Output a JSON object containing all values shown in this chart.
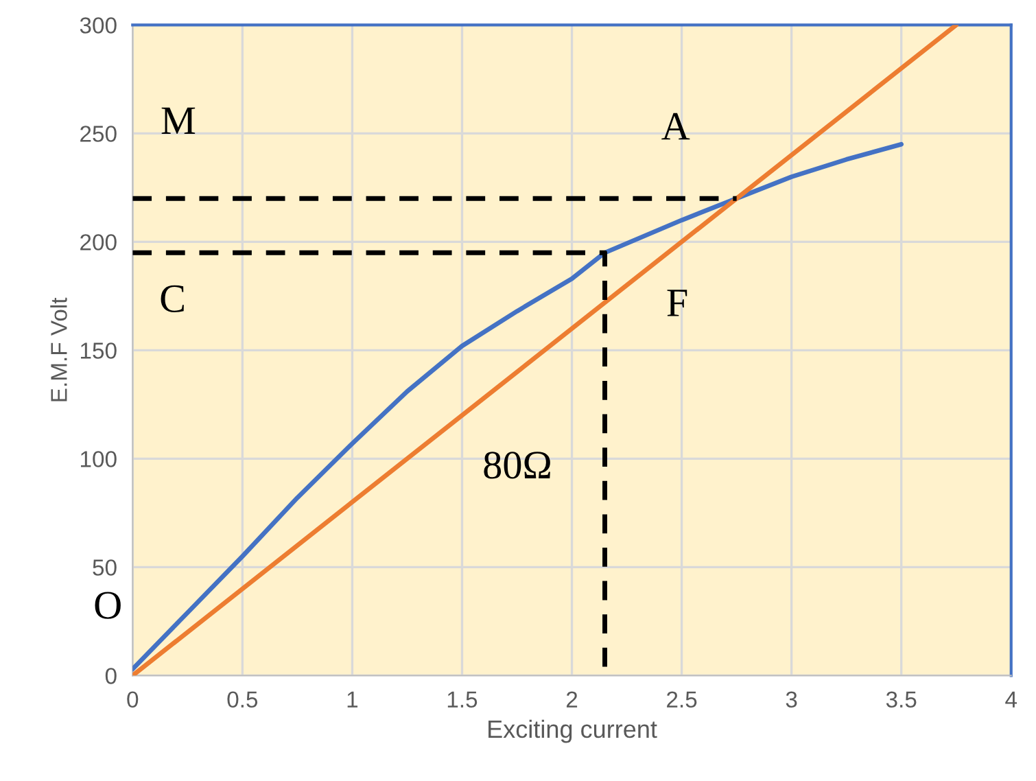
{
  "chart_data": {
    "type": "line",
    "xlabel": "Exciting current",
    "ylabel": "E.M.F Volt",
    "xlim": [
      0,
      4
    ],
    "ylim": [
      0,
      300
    ],
    "xticks": [
      0,
      0.5,
      1,
      1.5,
      2,
      2.5,
      3,
      3.5,
      4
    ],
    "yticks": [
      0,
      50,
      100,
      150,
      200,
      250,
      300
    ],
    "grid": true,
    "legend": false,
    "series": [
      {
        "color": "#4472c4",
        "x": [
          0,
          0.25,
          0.5,
          0.75,
          1,
          1.25,
          1.5,
          1.75,
          2,
          2.15,
          2.5,
          2.75,
          3,
          3.25,
          3.5
        ],
        "values": [
          3,
          29,
          55,
          82,
          107,
          131,
          152,
          168,
          183,
          195,
          210,
          220,
          230,
          238,
          245
        ]
      },
      {
        "color": "#ed7d31",
        "x": [
          0,
          3.75
        ],
        "values": [
          0,
          300
        ]
      },
      {
        "color": "#000000",
        "line_style": "dashed",
        "x": [
          0,
          2.75
        ],
        "values": [
          220,
          220
        ]
      },
      {
        "color": "#000000",
        "line_style": "dashed",
        "x": [
          0,
          2.15,
          2.15
        ],
        "values": [
          195,
          195,
          0
        ]
      }
    ],
    "annotations": [
      {
        "text": "M",
        "x": 0,
        "y": 220
      },
      {
        "text": "A",
        "x": 2.75,
        "y": 220
      },
      {
        "text": "C",
        "x": 0,
        "y": 195
      },
      {
        "text": "F",
        "x": 2.15,
        "y": 172
      },
      {
        "text": "O",
        "x": 0,
        "y": 0
      },
      {
        "text": "80Ω",
        "x": 1.5,
        "y": 120
      }
    ]
  }
}
